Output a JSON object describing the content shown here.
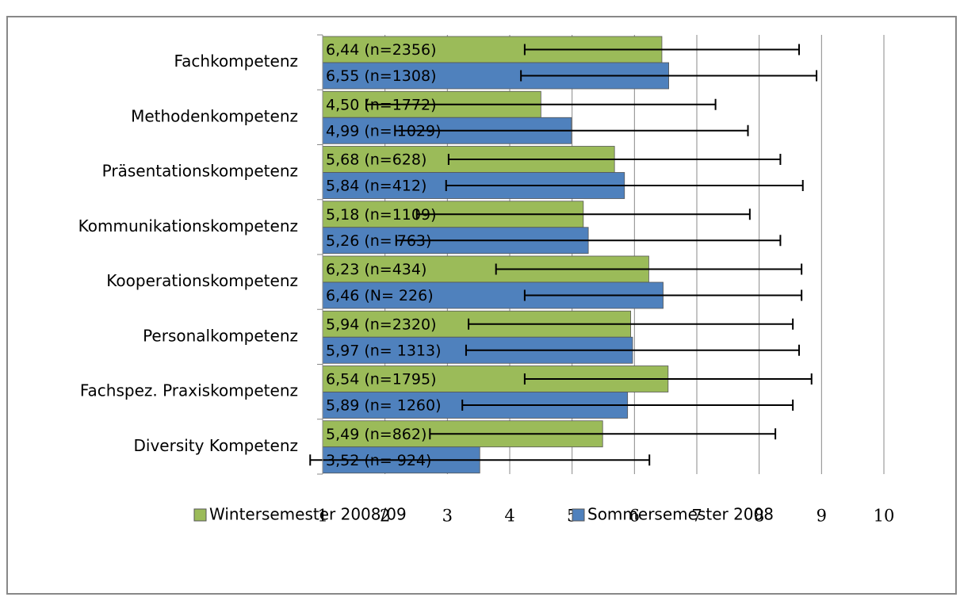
{
  "chart_data": {
    "type": "bar",
    "orientation": "horizontal",
    "categories": [
      "Fachkompetenz",
      "Methodenkompetenz",
      "Präsentationskompetenz",
      "Kommunikationskompetenz",
      "Kooperationskompetenz",
      "Personalkompetenz",
      "Fachspez. Praxiskompetenz",
      "Diversity Kompetenz"
    ],
    "series": [
      {
        "name": "Wintersemester 2008/09",
        "color": "#9bbb59",
        "values": [
          6.44,
          4.5,
          5.68,
          5.18,
          6.23,
          5.94,
          6.54,
          5.49
        ],
        "errors": [
          2.2,
          2.8,
          2.66,
          2.67,
          2.45,
          2.6,
          2.3,
          2.77
        ],
        "value_labels": [
          "6,44 (n=2356)",
          "4,50 (n=1772)",
          "5,68 (n=628)",
          "5,18 (n=1109)",
          "6,23 (n=434)",
          "5,94 (n=2320)",
          "6,54 (n=1795)",
          "5,49 (n=862)"
        ]
      },
      {
        "name": "Sommersemester 2008",
        "color": "#4f81bd",
        "values": [
          6.55,
          4.99,
          5.84,
          5.26,
          6.46,
          5.97,
          5.89,
          3.52
        ],
        "errors": [
          2.37,
          2.83,
          2.86,
          3.08,
          2.22,
          2.67,
          2.65,
          2.72
        ],
        "value_labels": [
          "6,55 (n=1308)",
          "4,99 (n= 1029)",
          "5,84 (n=412)",
          "5,26 (n= 763)",
          "6,46 (N= 226)",
          "5,97 (n= 1313)",
          "5,89 (n= 1260)",
          "3,52 (n= 924)"
        ]
      }
    ],
    "xlim": [
      1,
      10
    ],
    "xticks": [
      1,
      2,
      3,
      4,
      5,
      6,
      7,
      8,
      9,
      10
    ],
    "grid": true,
    "legend": "bottom"
  }
}
